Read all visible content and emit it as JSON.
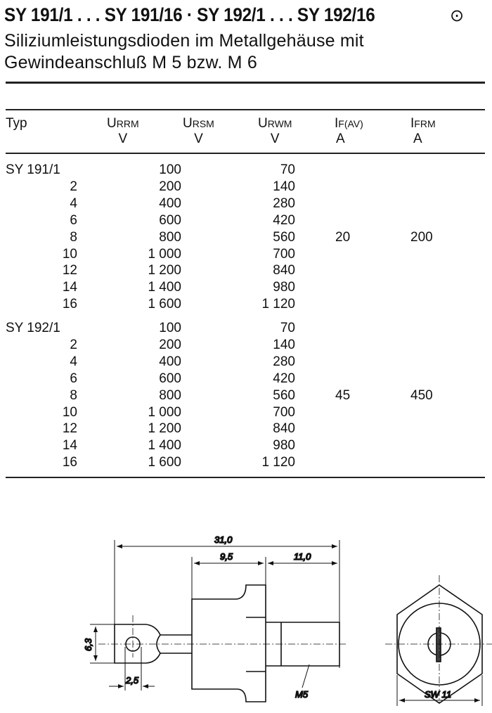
{
  "header": {
    "title": "SY 191/1 . . . SY 191/16 · SY 192/1 . . . SY 192/16",
    "symbol": "⊙",
    "subtitle_line1": "Siliziumleistungsdioden im Metallgehäuse mit",
    "subtitle_line2": "Gewindeanschluß M 5 bzw. M 6"
  },
  "table": {
    "columns": [
      {
        "label": "Typ",
        "sub": "",
        "unit": ""
      },
      {
        "label": "U",
        "sub": "RRM",
        "unit": "V"
      },
      {
        "label": "U",
        "sub": "RSM",
        "unit": "V"
      },
      {
        "label": "U",
        "sub": "RWM",
        "unit": "V"
      },
      {
        "label": "I",
        "sub": "F(AV)",
        "unit": "A"
      },
      {
        "label": "I",
        "sub": "FRM",
        "unit": "A"
      }
    ],
    "groups": [
      {
        "if_av": "20",
        "ifrm": "200",
        "rows": [
          {
            "typ": "SY 191/1",
            "urrm": "100",
            "urwm": "70"
          },
          {
            "typ": "2",
            "urrm": "200",
            "urwm": "140"
          },
          {
            "typ": "4",
            "urrm": "400",
            "urwm": "280"
          },
          {
            "typ": "6",
            "urrm": "600",
            "urwm": "420"
          },
          {
            "typ": "8",
            "urrm": "800",
            "urwm": "560"
          },
          {
            "typ": "10",
            "urrm": "1 000",
            "urwm": "700"
          },
          {
            "typ": "12",
            "urrm": "1 200",
            "urwm": "840"
          },
          {
            "typ": "14",
            "urrm": "1 400",
            "urwm": "980"
          },
          {
            "typ": "16",
            "urrm": "1 600",
            "urwm": "1 120"
          }
        ]
      },
      {
        "if_av": "45",
        "ifrm": "450",
        "rows": [
          {
            "typ": "SY 192/1",
            "urrm": "100",
            "urwm": "70"
          },
          {
            "typ": "2",
            "urrm": "200",
            "urwm": "140"
          },
          {
            "typ": "4",
            "urrm": "400",
            "urwm": "280"
          },
          {
            "typ": "6",
            "urrm": "600",
            "urwm": "420"
          },
          {
            "typ": "8",
            "urrm": "800",
            "urwm": "560"
          },
          {
            "typ": "10",
            "urrm": "1 000",
            "urwm": "700"
          },
          {
            "typ": "12",
            "urrm": "1 200",
            "urwm": "840"
          },
          {
            "typ": "14",
            "urrm": "1 400",
            "urwm": "980"
          },
          {
            "typ": "16",
            "urrm": "1 600",
            "urwm": "1 120"
          }
        ]
      }
    ]
  },
  "drawing": {
    "dim_total": "31,0",
    "dim_body": "9,5",
    "dim_thread": "11,0",
    "dim_tab_height": "6,3",
    "dim_hole": "2,5",
    "thread_label": "M5",
    "hex_label": "SW 11"
  }
}
